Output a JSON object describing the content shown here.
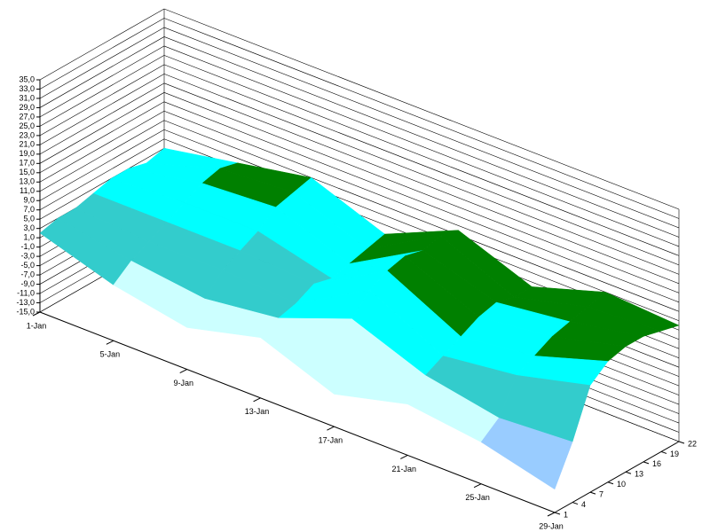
{
  "chart_data": {
    "type": "surface",
    "categories": [
      "1-Jan",
      "5-Jan",
      "9-Jan",
      "13-Jan",
      "17-Jan",
      "21-Jan",
      "25-Jan",
      "29-Jan"
    ],
    "y": [
      1,
      4,
      7,
      10,
      13,
      16,
      19,
      22
    ],
    "ylim": [
      1,
      22
    ],
    "yticks": [
      1,
      4,
      7,
      10,
      13,
      16,
      19,
      22
    ],
    "z": [
      [
        2,
        -3,
        -6,
        -2,
        -8,
        -4,
        -6,
        -10
      ],
      [
        3,
        0,
        -2,
        0,
        6,
        0,
        -3,
        -2
      ],
      [
        3,
        2,
        2,
        1,
        10,
        2,
        4,
        8
      ],
      [
        4,
        4,
        4,
        3,
        12,
        4,
        6,
        11
      ],
      [
        5,
        6,
        6,
        2,
        13,
        6,
        8,
        12
      ],
      [
        5,
        8,
        9,
        3,
        12,
        7,
        9,
        12
      ],
      [
        4,
        9,
        10,
        4,
        13,
        6,
        10,
        11
      ],
      [
        5,
        8,
        11,
        5,
        12,
        6,
        11,
        10
      ]
    ],
    "zlim": [
      -15,
      35
    ],
    "zticks": [
      {
        "value": -15,
        "label": "-15,0"
      },
      {
        "value": -13,
        "label": "-13,0"
      },
      {
        "value": -11,
        "label": "-11,0"
      },
      {
        "value": -9,
        "label": "-9,0"
      },
      {
        "value": -7,
        "label": "-7,0"
      },
      {
        "value": -5,
        "label": "-5,0"
      },
      {
        "value": -3,
        "label": "-3,0"
      },
      {
        "value": -1,
        "label": "-1,0"
      },
      {
        "value": 1,
        "label": "1,0"
      },
      {
        "value": 3,
        "label": "3,0"
      },
      {
        "value": 5,
        "label": "5,0"
      },
      {
        "value": 7,
        "label": "7,0"
      },
      {
        "value": 9,
        "label": "9,0"
      },
      {
        "value": 11,
        "label": "11,0"
      },
      {
        "value": 13,
        "label": "13,0"
      },
      {
        "value": 15,
        "label": "15,0"
      },
      {
        "value": 17,
        "label": "17,0"
      },
      {
        "value": 19,
        "label": "19,0"
      },
      {
        "value": 21,
        "label": "21,0"
      },
      {
        "value": 23,
        "label": "23,0"
      },
      {
        "value": 25,
        "label": "25,0"
      },
      {
        "value": 27,
        "label": "27,0"
      },
      {
        "value": 29,
        "label": "29,0"
      },
      {
        "value": 31,
        "label": "31,0"
      },
      {
        "value": 33,
        "label": "33,0"
      },
      {
        "value": 35,
        "label": "35,0"
      }
    ],
    "band_edges": [
      -4,
      0,
      4,
      8,
      12
    ],
    "band_colors": [
      "#99ccff",
      "#ccffff",
      "#33cccc",
      "#00ffff",
      "#008000",
      "#99cc00"
    ],
    "grid": true
  }
}
